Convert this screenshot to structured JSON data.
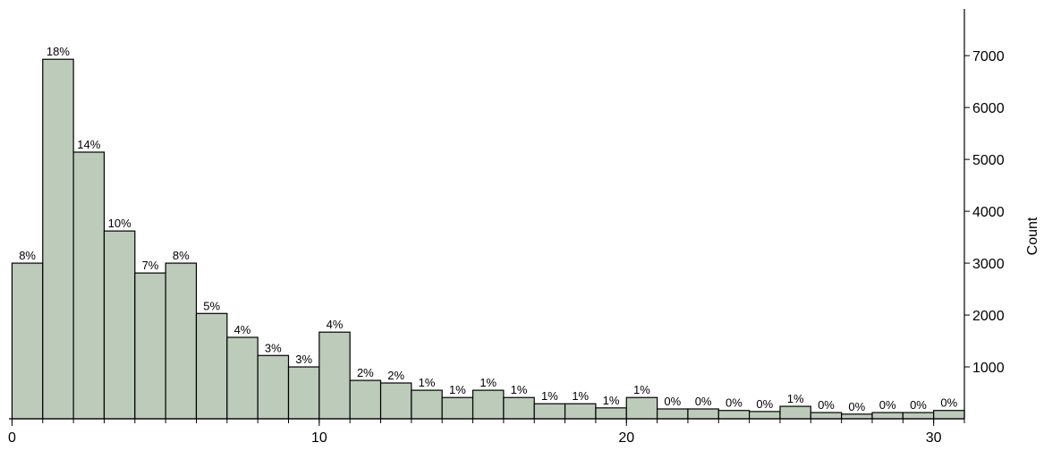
{
  "chart_data": {
    "type": "histogram",
    "bins": [
      0,
      1,
      2,
      3,
      4,
      5,
      6,
      7,
      8,
      9,
      10,
      11,
      12,
      13,
      14,
      15,
      16,
      17,
      18,
      19,
      20,
      21,
      22,
      23,
      24,
      25,
      26,
      27,
      28,
      29,
      30,
      31
    ],
    "values": [
      3000,
      6930,
      5140,
      3620,
      2810,
      3000,
      2030,
      1570,
      1220,
      1000,
      1670,
      740,
      690,
      550,
      410,
      550,
      410,
      290,
      290,
      210,
      410,
      190,
      190,
      160,
      140,
      240,
      120,
      90,
      120,
      120,
      160
    ],
    "bar_labels": [
      {
        "value": 8,
        "label": "8%"
      },
      {
        "value": 18,
        "label": "18%"
      },
      {
        "value": 14,
        "label": "14%"
      },
      {
        "value": 10,
        "label": "10%"
      },
      {
        "value": 7,
        "label": "7%"
      },
      {
        "value": 8,
        "label": "8%"
      },
      {
        "value": 5,
        "label": "5%"
      },
      {
        "value": 4,
        "label": "4%"
      },
      {
        "value": 3,
        "label": "3%"
      },
      {
        "value": 3,
        "label": "3%"
      },
      {
        "value": 4,
        "label": "4%"
      },
      {
        "value": 2,
        "label": "2%"
      },
      {
        "value": 2,
        "label": "2%"
      },
      {
        "value": 1,
        "label": "1%"
      },
      {
        "value": 1,
        "label": "1%"
      },
      {
        "value": 1,
        "label": "1%"
      },
      {
        "value": 1,
        "label": "1%"
      },
      {
        "value": 1,
        "label": "1%"
      },
      {
        "value": 1,
        "label": "1%"
      },
      {
        "value": 1,
        "label": "1%"
      },
      {
        "value": 1,
        "label": "1%"
      },
      {
        "value": 0,
        "label": "0%"
      },
      {
        "value": 0,
        "label": "0%"
      },
      {
        "value": 0,
        "label": "0%"
      },
      {
        "value": 0,
        "label": "0%"
      },
      {
        "value": 1,
        "label": "1%"
      },
      {
        "value": 0,
        "label": "0%"
      },
      {
        "value": 0,
        "label": "0%"
      },
      {
        "value": 0,
        "label": "0%"
      },
      {
        "value": 0,
        "label": "0%"
      },
      {
        "value": 0,
        "label": "0%"
      }
    ],
    "color": "#bccbba",
    "xlim": [
      -0.1,
      31
    ],
    "xticks": [
      0,
      10,
      20,
      30
    ],
    "ylim": [
      0,
      7900
    ],
    "yticks": [
      1000,
      2000,
      3000,
      4000,
      5000,
      6000,
      7000
    ],
    "ylabel": "Count",
    "y_axis_side": "right"
  }
}
